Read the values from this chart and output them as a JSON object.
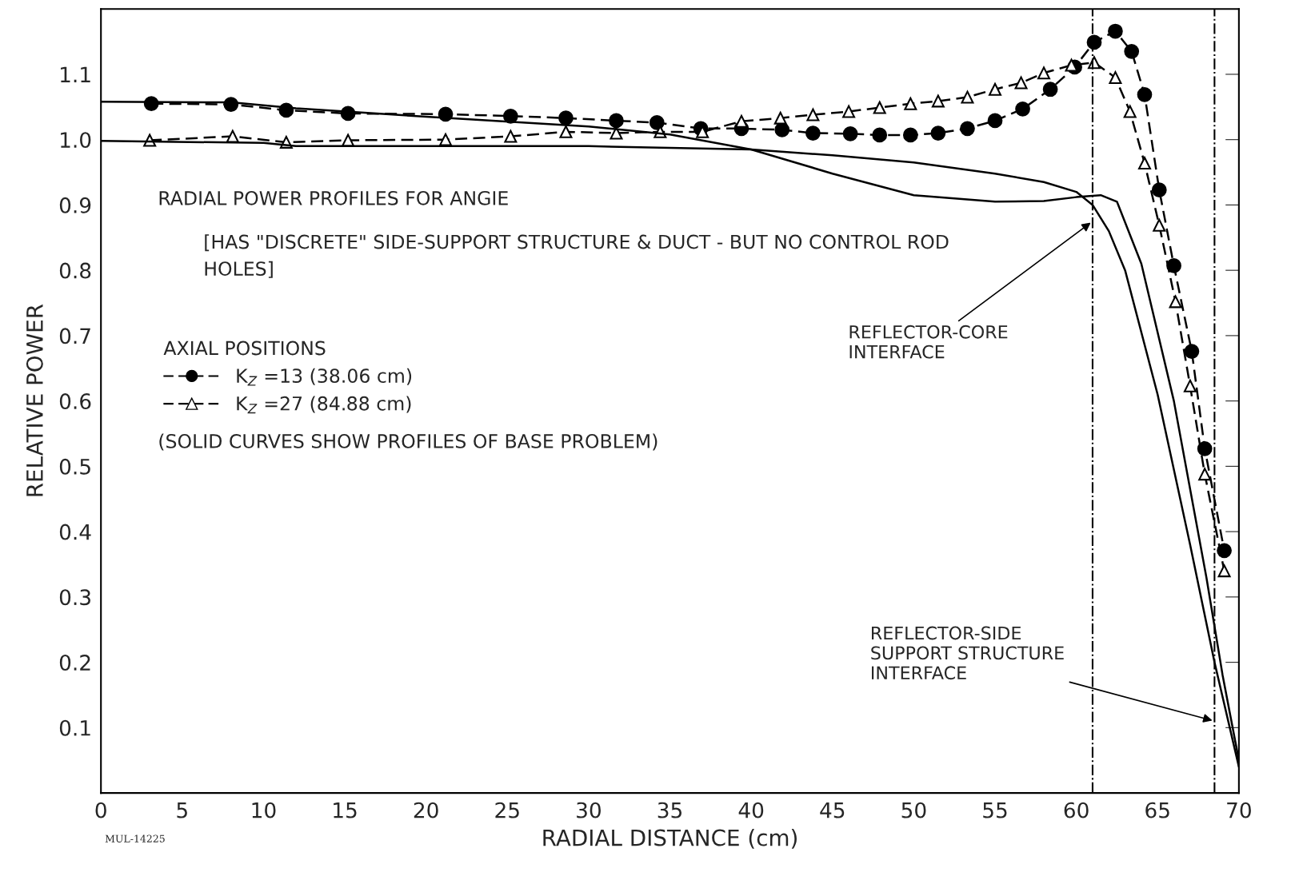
{
  "chart_data": {
    "type": "line",
    "title": "RADIAL POWER PROFILES FOR ANGIE",
    "subtitle": "[HAS \"DISCRETE\" SIDE-SUPPORT STRUCTURE & DUCT - BUT NO CONTROL ROD HOLES]",
    "xlabel": "RADIAL DISTANCE (cm)",
    "ylabel": "RELATIVE POWER",
    "legend_title": "AXIAL POSITIONS",
    "legend": "left",
    "xlim": [
      0,
      70
    ],
    "ylim": [
      0,
      1.2
    ],
    "xticks": [
      0,
      5,
      10,
      15,
      20,
      25,
      30,
      35,
      40,
      45,
      50,
      55,
      60,
      65,
      70
    ],
    "yticks": [
      0.1,
      0.2,
      0.3,
      0.4,
      0.5,
      0.6,
      0.7,
      0.8,
      0.9,
      {
        "value": 1.0,
        "label": "1.0"
      },
      1.1
    ],
    "grid": false,
    "series": [
      {
        "name": "K$_{Z}$ =13 (38.06 cm)",
        "color": "#000000",
        "marker": "circle",
        "line_style": "dashed",
        "x": [
          3.1,
          8.0,
          11.4,
          15.2,
          21.2,
          25.2,
          28.6,
          31.7,
          34.2,
          36.9,
          39.4,
          41.9,
          43.8,
          46.1,
          47.9,
          49.8,
          51.5,
          53.3,
          55.0,
          56.7,
          58.4,
          59.9,
          61.1,
          62.4,
          63.4,
          64.2,
          65.1,
          66.0,
          67.1,
          67.9,
          69.1
        ],
        "values": [
          1.055,
          1.054,
          1.045,
          1.04,
          1.039,
          1.036,
          1.033,
          1.029,
          1.026,
          1.017,
          1.017,
          1.015,
          1.01,
          1.009,
          1.007,
          1.007,
          1.01,
          1.017,
          1.029,
          1.047,
          1.077,
          1.111,
          1.149,
          1.166,
          1.135,
          1.069,
          0.923,
          0.807,
          0.676,
          0.527,
          0.371
        ]
      },
      {
        "name": "K$_{Z}$ =27 (84.88 cm)",
        "color": "#000000",
        "marker": "triangle",
        "line_style": "dashed",
        "x": [
          3.0,
          8.1,
          11.4,
          15.2,
          21.2,
          25.2,
          28.6,
          31.7,
          34.4,
          37.0,
          39.4,
          41.8,
          43.8,
          46.0,
          47.9,
          49.8,
          51.5,
          53.3,
          55.0,
          56.6,
          58.0,
          59.7,
          61.1,
          62.4,
          63.3,
          64.2,
          65.1,
          66.1,
          67.0,
          67.9,
          69.1
        ],
        "values": [
          0.999,
          1.005,
          0.996,
          0.999,
          1.0,
          1.005,
          1.012,
          1.01,
          1.012,
          1.012,
          1.028,
          1.033,
          1.038,
          1.043,
          1.049,
          1.055,
          1.059,
          1.065,
          1.077,
          1.087,
          1.102,
          1.114,
          1.118,
          1.095,
          1.043,
          0.964,
          0.869,
          0.752,
          0.623,
          0.488,
          0.34
        ]
      },
      {
        "color": "#000000",
        "marker": "none",
        "line_style": "solid",
        "x": [
          0,
          8,
          12,
          20,
          30,
          35,
          40,
          45,
          50,
          55,
          58,
          60,
          61.5,
          62.5,
          64,
          66,
          68,
          69,
          70
        ],
        "values": [
          1.058,
          1.057,
          1.048,
          1.035,
          1.02,
          1.008,
          0.985,
          0.948,
          0.915,
          0.905,
          0.906,
          0.912,
          0.915,
          0.905,
          0.81,
          0.6,
          0.33,
          0.18,
          0.05
        ]
      },
      {
        "color": "#000000",
        "marker": "none",
        "line_style": "solid",
        "x": [
          0,
          10,
          12,
          20,
          30,
          40,
          45,
          50,
          55,
          58,
          60,
          61,
          62,
          63,
          65,
          67,
          68.5,
          70
        ],
        "values": [
          0.998,
          0.995,
          0.99,
          0.99,
          0.99,
          0.985,
          0.976,
          0.965,
          0.948,
          0.935,
          0.92,
          0.9,
          0.86,
          0.8,
          0.61,
          0.38,
          0.2,
          0.04
        ]
      }
    ],
    "ref_lines": [
      {
        "axis": "x",
        "value": 61,
        "line_style": "dashdot"
      },
      {
        "axis": "x",
        "value": 68.5,
        "line_style": "dashdot"
      }
    ],
    "annotations": [
      "(SOLID CURVES SHOW PROFILES OF BASE PROBLEM)",
      {
        "text": "REFLECTOR-CORE\nINTERFACE",
        "x": 61,
        "y": 0.875
      },
      {
        "text": "REFLECTOR-SIDE\nSUPPORT STRUCTURE\nINTERFACE",
        "x": 68.5,
        "y": 0.11
      },
      "MUL-14225"
    ]
  }
}
